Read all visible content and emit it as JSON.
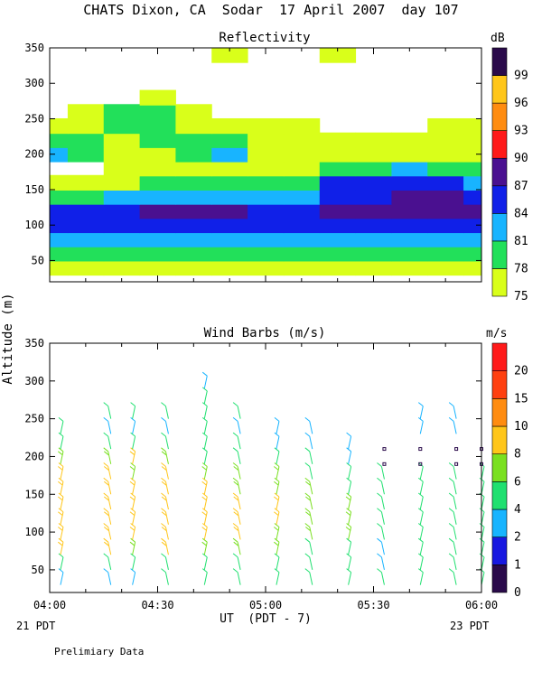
{
  "page": {
    "title": "CHATS Dixon, CA  Sodar  17 April 2007  day 107",
    "ylabel": "Altitude (m)",
    "xlabel": "UT  (PDT - 7)",
    "left_date": "21 PDT",
    "right_date": "23 PDT",
    "footnote": "Prelimiary Data"
  },
  "chart_data": [
    {
      "type": "heatmap",
      "title": "Reflectivity",
      "x_ticks": [
        "04:00",
        "04:30",
        "05:00",
        "05:30",
        "06:00"
      ],
      "xlim": [
        "04:00",
        "06:00"
      ],
      "y_ticks": [
        50,
        100,
        150,
        200,
        250,
        300,
        350
      ],
      "ylim": [
        20,
        350
      ],
      "colorbar": {
        "unit": "dB",
        "levels": [
          75,
          78,
          81,
          84,
          87,
          90,
          93,
          96,
          99
        ],
        "colors": [
          "#d9ff1a",
          "#22e05a",
          "#18b4ff",
          "#1020e8",
          "#4a1090",
          "#ff1a1a",
          "#ff8c10",
          "#ffc61a",
          "#2a0a4a"
        ]
      },
      "times": [
        "04:00",
        "04:10",
        "04:20",
        "04:30",
        "04:40",
        "04:50",
        "05:00",
        "05:10",
        "05:20",
        "05:30",
        "05:40",
        "05:50",
        "06:00"
      ],
      "altitudes": [
        40,
        60,
        80,
        100,
        120,
        140,
        160,
        180,
        200,
        220,
        240,
        260,
        280,
        300,
        320,
        340
      ],
      "values": [
        [
          76,
          76,
          77,
          77,
          77,
          76,
          77,
          76,
          76,
          76,
          76,
          77,
          77
        ],
        [
          80,
          79,
          78,
          79,
          78,
          78,
          79,
          78,
          78,
          78,
          78,
          78,
          78
        ],
        [
          83,
          83,
          82,
          82,
          82,
          82,
          82,
          82,
          82,
          82,
          82,
          82,
          82
        ],
        [
          86,
          86,
          85,
          85,
          85,
          86,
          86,
          85,
          86,
          86,
          85,
          85,
          85
        ],
        [
          85,
          85,
          86,
          88,
          88,
          87,
          85,
          86,
          88,
          88,
          88,
          87,
          87
        ],
        [
          80,
          80,
          81,
          82,
          83,
          82,
          81,
          82,
          86,
          86,
          88,
          87,
          85
        ],
        [
          76,
          76,
          76,
          78,
          79,
          79,
          79,
          80,
          84,
          86,
          86,
          84,
          83
        ],
        [
          74,
          74,
          75,
          76,
          76,
          76,
          76,
          77,
          78,
          80,
          81,
          79,
          78
        ],
        [
          81,
          80,
          76,
          77,
          78,
          81,
          77,
          77,
          77,
          77,
          77,
          77,
          76
        ],
        [
          79,
          78,
          77,
          79,
          78,
          78,
          77,
          77,
          76,
          76,
          76,
          76,
          76
        ],
        [
          77,
          76,
          80,
          79,
          77,
          76,
          76,
          75,
          74,
          74,
          74,
          76,
          76
        ],
        [
          74,
          75,
          78,
          78,
          75,
          74,
          74,
          74,
          74,
          74,
          74,
          74,
          74
        ],
        [
          74,
          74,
          74,
          75,
          74,
          74,
          74,
          74,
          73,
          73,
          73,
          73,
          73
        ],
        [
          73,
          73,
          73,
          73,
          73,
          73,
          73,
          73,
          73,
          73,
          73,
          73,
          73
        ],
        [
          73,
          73,
          73,
          73,
          73,
          73,
          73,
          73,
          73,
          73,
          73,
          73,
          73
        ],
        [
          73,
          73,
          73,
          73,
          73,
          75,
          73,
          73,
          75,
          73,
          73,
          73,
          73
        ]
      ]
    },
    {
      "type": "scatter",
      "title": "Wind Barbs (m/s)",
      "x_ticks": [
        "04:00",
        "04:30",
        "05:00",
        "05:30",
        "06:00"
      ],
      "xlim": [
        "04:00",
        "06:00"
      ],
      "y_ticks": [
        50,
        100,
        150,
        200,
        250,
        300,
        350
      ],
      "ylim": [
        20,
        350
      ],
      "colorbar": {
        "unit": "m/s",
        "levels": [
          0,
          1,
          2,
          4,
          6,
          8,
          10,
          15,
          20
        ],
        "colors": [
          "#2a0a4a",
          "#1818e0",
          "#18b4ff",
          "#20e070",
          "#7ae020",
          "#ffc61a",
          "#ff8c10",
          "#ff4010",
          "#ff1a1a"
        ]
      },
      "times": [
        "04:03",
        "04:17",
        "04:23",
        "04:33",
        "04:43",
        "04:53",
        "05:03",
        "05:13",
        "05:23",
        "05:33",
        "05:43",
        "05:53",
        "06:00"
      ],
      "altitudes": [
        30,
        50,
        70,
        90,
        110,
        130,
        150,
        170,
        190,
        210,
        230,
        250,
        270,
        290
      ],
      "speed": [
        [
          3,
          3,
          3,
          4,
          4,
          4,
          4,
          4,
          4,
          4,
          4,
          4,
          4
        ],
        [
          4,
          4,
          4,
          4,
          5,
          5,
          4,
          4,
          4,
          3,
          4,
          4,
          4
        ],
        [
          8,
          8,
          7,
          8,
          7,
          6,
          6,
          5,
          4,
          3,
          4,
          4,
          4
        ],
        [
          9,
          9,
          8,
          8,
          9,
          8,
          7,
          7,
          6,
          4,
          4,
          4,
          4
        ],
        [
          9,
          9,
          9,
          9,
          9,
          8,
          8,
          7,
          6,
          4,
          4,
          4,
          4
        ],
        [
          9,
          8,
          9,
          9,
          9,
          8,
          8,
          7,
          6,
          4,
          4,
          4,
          4
        ],
        [
          8,
          8,
          8,
          9,
          8,
          7,
          7,
          6,
          5,
          4,
          4,
          4,
          4
        ],
        [
          8,
          8,
          7,
          8,
          7,
          6,
          6,
          5,
          4,
          4,
          4,
          4,
          4
        ],
        [
          7,
          7,
          8,
          7,
          5,
          5,
          5,
          4,
          3,
          0,
          0,
          0,
          0
        ],
        [
          5,
          4,
          4,
          5,
          4,
          4,
          3,
          2,
          2,
          0,
          0,
          0,
          0
        ],
        [
          4,
          3,
          2,
          3,
          4,
          3,
          2,
          2,
          null,
          null,
          2,
          2,
          null
        ],
        [
          null,
          4,
          4,
          4,
          4,
          5,
          null,
          null,
          null,
          null,
          2,
          2,
          null
        ],
        [
          null,
          null,
          null,
          null,
          4,
          null,
          null,
          null,
          null,
          null,
          null,
          null,
          null
        ],
        [
          null,
          null,
          null,
          null,
          2,
          null,
          null,
          null,
          null,
          null,
          null,
          null,
          null
        ]
      ]
    }
  ]
}
